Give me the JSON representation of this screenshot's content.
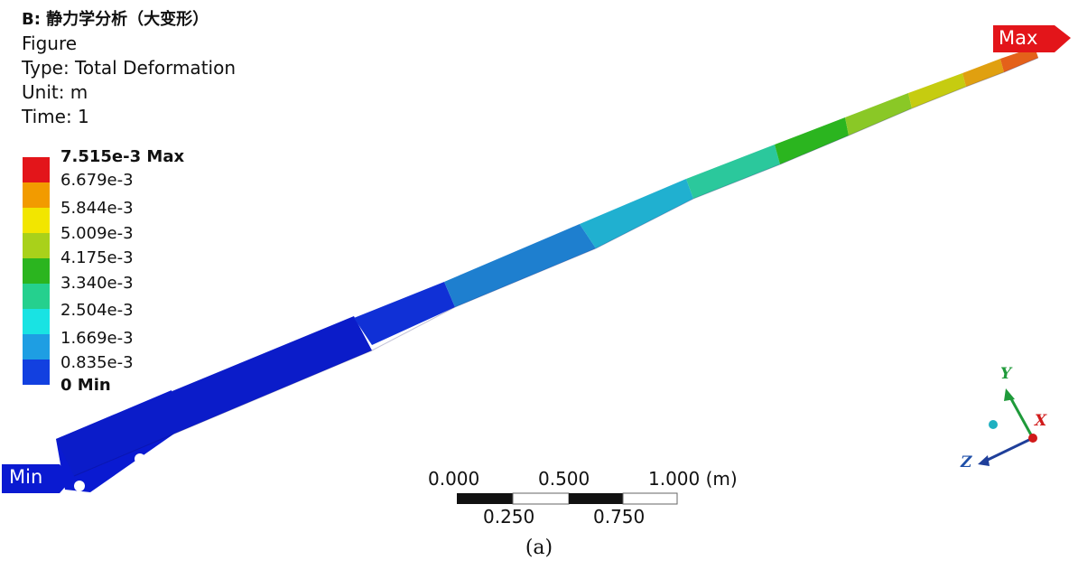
{
  "header": {
    "title": "B: 静力学分析（大变形）",
    "line2": "Figure",
    "line3": "Type: Total Deformation",
    "line4": "Unit: m",
    "line5": "Time: 1"
  },
  "legend": {
    "labels": [
      "7.515e-3 Max",
      "6.679e-3",
      "5.844e-3",
      "5.009e-3",
      "4.175e-3",
      "3.340e-3",
      "2.504e-3",
      "1.669e-3",
      "0.835e-3",
      "0 Min"
    ],
    "colors": [
      "#e3151a",
      "#f29b00",
      "#f2e600",
      "#a9d11a",
      "#2bb51f",
      "#25d08e",
      "#19e3e3",
      "#1e9ee3",
      "#1240e0",
      "#0a1ad1"
    ]
  },
  "markers": {
    "max_label": "Max",
    "min_label": "Min",
    "max_color": "#e3151a",
    "min_color": "#0a1ad1"
  },
  "scale_bar": {
    "top_labels": [
      "0.000",
      "0.500",
      "1.000 (m)"
    ],
    "bottom_labels": [
      "0.250",
      "0.750"
    ]
  },
  "axes": {
    "x": "X",
    "y": "Y",
    "z": "Z",
    "x_color": "#d11a1a",
    "y_color": "#1f9a3a",
    "z_color": "#1f4fa8"
  },
  "caption": "(a)"
}
